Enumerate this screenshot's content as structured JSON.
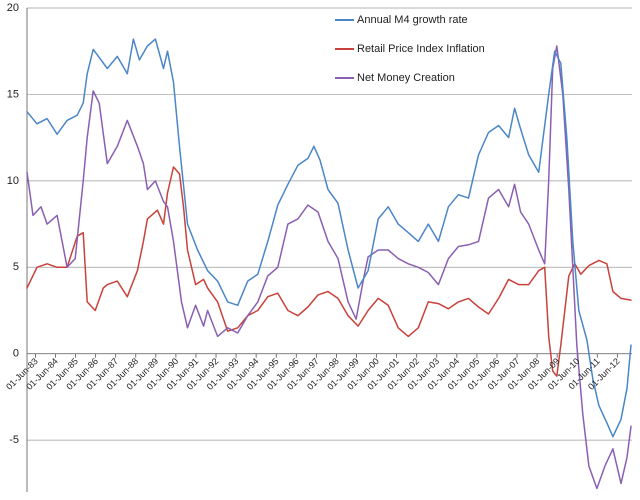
{
  "chart_data": {
    "type": "line",
    "title": "",
    "xlabel": "",
    "ylabel": "",
    "ylim": [
      -8,
      20
    ],
    "yticks": [
      -5,
      0,
      5,
      10,
      15,
      20
    ],
    "grid": true,
    "legend_position": "top-right",
    "x_tick_labels": [
      "01-Jun-83",
      "01-Jun-84",
      "01-Jun-85",
      "01-Jun-86",
      "01-Jun-87",
      "01-Jun-88",
      "01-Jun-89",
      "01-Jun-90",
      "01-Jun-91",
      "01-Jun-92",
      "01-Jun-93",
      "01-Jun-94",
      "01-Jun-95",
      "01-Jun-96",
      "01-Jun-97",
      "01-Jun-98",
      "01-Jun-99",
      "01-Jun-00",
      "01-Jun-01",
      "01-Jun-02",
      "01-Jun-03",
      "01-Jun-04",
      "01-Jun-05",
      "01-Jun-06",
      "01-Jun-07",
      "01-Jun-08",
      "01-Jun-09",
      "01-Jun-10",
      "01-Jun-11",
      "01-Jun-12"
    ],
    "x_start_year": 1983,
    "series": [
      {
        "name": "Annual M4 growth rate",
        "color": "#4a86c8",
        "points": [
          [
            1983.0,
            14.0
          ],
          [
            1983.5,
            13.3
          ],
          [
            1984.0,
            13.6
          ],
          [
            1984.5,
            12.7
          ],
          [
            1985.0,
            13.5
          ],
          [
            1985.5,
            13.8
          ],
          [
            1985.8,
            14.5
          ],
          [
            1986.0,
            16.2
          ],
          [
            1986.3,
            17.6
          ],
          [
            1986.5,
            17.3
          ],
          [
            1987.0,
            16.5
          ],
          [
            1987.5,
            17.2
          ],
          [
            1988.0,
            16.2
          ],
          [
            1988.3,
            18.2
          ],
          [
            1988.6,
            17.0
          ],
          [
            1989.0,
            17.8
          ],
          [
            1989.4,
            18.2
          ],
          [
            1989.8,
            16.5
          ],
          [
            1990.0,
            17.5
          ],
          [
            1990.3,
            15.7
          ],
          [
            1990.6,
            12.0
          ],
          [
            1991.0,
            7.5
          ],
          [
            1991.5,
            6.0
          ],
          [
            1992.0,
            4.8
          ],
          [
            1992.5,
            4.2
          ],
          [
            1993.0,
            3.0
          ],
          [
            1993.5,
            2.8
          ],
          [
            1994.0,
            4.2
          ],
          [
            1994.5,
            4.6
          ],
          [
            1995.0,
            6.5
          ],
          [
            1995.5,
            8.6
          ],
          [
            1996.0,
            9.8
          ],
          [
            1996.5,
            10.9
          ],
          [
            1997.0,
            11.3
          ],
          [
            1997.3,
            12.0
          ],
          [
            1997.6,
            11.2
          ],
          [
            1998.0,
            9.5
          ],
          [
            1998.5,
            8.7
          ],
          [
            1999.0,
            6.0
          ],
          [
            1999.5,
            3.8
          ],
          [
            2000.0,
            4.8
          ],
          [
            2000.5,
            7.8
          ],
          [
            2001.0,
            8.5
          ],
          [
            2001.5,
            7.5
          ],
          [
            2002.0,
            7.0
          ],
          [
            2002.5,
            6.5
          ],
          [
            2003.0,
            7.5
          ],
          [
            2003.5,
            6.5
          ],
          [
            2004.0,
            8.5
          ],
          [
            2004.5,
            9.2
          ],
          [
            2005.0,
            9.0
          ],
          [
            2005.5,
            11.5
          ],
          [
            2006.0,
            12.8
          ],
          [
            2006.5,
            13.2
          ],
          [
            2007.0,
            12.5
          ],
          [
            2007.3,
            14.2
          ],
          [
            2007.6,
            13.0
          ],
          [
            2008.0,
            11.5
          ],
          [
            2008.5,
            10.5
          ],
          [
            2009.0,
            15.0
          ],
          [
            2009.3,
            17.5
          ],
          [
            2009.6,
            16.8
          ],
          [
            2009.9,
            12.5
          ],
          [
            2010.2,
            6.5
          ],
          [
            2010.5,
            2.5
          ],
          [
            2010.9,
            0.8
          ],
          [
            2011.2,
            -1.5
          ],
          [
            2011.5,
            -3.0
          ],
          [
            2011.9,
            -4.0
          ],
          [
            2012.2,
            -4.8
          ],
          [
            2012.6,
            -3.8
          ],
          [
            2012.9,
            -2.0
          ],
          [
            2013.1,
            0.5
          ]
        ]
      },
      {
        "name": "Retail Price Index Inflation",
        "color": "#c8423b",
        "points": [
          [
            1983.0,
            3.8
          ],
          [
            1983.5,
            5.0
          ],
          [
            1984.0,
            5.2
          ],
          [
            1984.5,
            5.0
          ],
          [
            1985.0,
            5.0
          ],
          [
            1985.5,
            6.8
          ],
          [
            1985.8,
            7.0
          ],
          [
            1986.0,
            3.0
          ],
          [
            1986.4,
            2.5
          ],
          [
            1986.8,
            3.8
          ],
          [
            1987.0,
            4.0
          ],
          [
            1987.5,
            4.2
          ],
          [
            1988.0,
            3.3
          ],
          [
            1988.5,
            4.8
          ],
          [
            1988.8,
            6.5
          ],
          [
            1989.0,
            7.8
          ],
          [
            1989.5,
            8.3
          ],
          [
            1989.8,
            7.5
          ],
          [
            1990.0,
            9.3
          ],
          [
            1990.3,
            10.8
          ],
          [
            1990.6,
            10.4
          ],
          [
            1990.8,
            8.5
          ],
          [
            1991.0,
            6.0
          ],
          [
            1991.4,
            4.0
          ],
          [
            1991.8,
            4.3
          ],
          [
            1992.0,
            3.8
          ],
          [
            1992.5,
            3.0
          ],
          [
            1993.0,
            1.3
          ],
          [
            1993.5,
            1.5
          ],
          [
            1994.0,
            2.2
          ],
          [
            1994.5,
            2.5
          ],
          [
            1995.0,
            3.3
          ],
          [
            1995.5,
            3.5
          ],
          [
            1996.0,
            2.5
          ],
          [
            1996.5,
            2.2
          ],
          [
            1997.0,
            2.7
          ],
          [
            1997.5,
            3.4
          ],
          [
            1998.0,
            3.6
          ],
          [
            1998.5,
            3.2
          ],
          [
            1999.0,
            2.2
          ],
          [
            1999.5,
            1.6
          ],
          [
            2000.0,
            2.5
          ],
          [
            2000.5,
            3.2
          ],
          [
            2001.0,
            2.8
          ],
          [
            2001.5,
            1.5
          ],
          [
            2002.0,
            1.0
          ],
          [
            2002.5,
            1.5
          ],
          [
            2003.0,
            3.0
          ],
          [
            2003.5,
            2.9
          ],
          [
            2004.0,
            2.6
          ],
          [
            2004.5,
            3.0
          ],
          [
            2005.0,
            3.2
          ],
          [
            2005.5,
            2.7
          ],
          [
            2006.0,
            2.3
          ],
          [
            2006.5,
            3.2
          ],
          [
            2007.0,
            4.3
          ],
          [
            2007.5,
            4.0
          ],
          [
            2008.0,
            4.0
          ],
          [
            2008.5,
            4.8
          ],
          [
            2008.8,
            5.0
          ],
          [
            2009.0,
            1.0
          ],
          [
            2009.2,
            -1.0
          ],
          [
            2009.4,
            -1.3
          ],
          [
            2009.6,
            0.5
          ],
          [
            2010.0,
            4.5
          ],
          [
            2010.3,
            5.2
          ],
          [
            2010.6,
            4.6
          ],
          [
            2011.0,
            5.1
          ],
          [
            2011.5,
            5.4
          ],
          [
            2011.9,
            5.2
          ],
          [
            2012.2,
            3.6
          ],
          [
            2012.6,
            3.2
          ],
          [
            2013.1,
            3.1
          ]
        ]
      },
      {
        "name": "Net Money Creation",
        "color": "#8a5fb2",
        "points": [
          [
            1983.0,
            10.5
          ],
          [
            1983.3,
            8.0
          ],
          [
            1983.7,
            8.5
          ],
          [
            1984.0,
            7.5
          ],
          [
            1984.5,
            8.0
          ],
          [
            1985.0,
            5.0
          ],
          [
            1985.4,
            5.5
          ],
          [
            1985.8,
            10.0
          ],
          [
            1986.0,
            12.5
          ],
          [
            1986.3,
            15.2
          ],
          [
            1986.6,
            14.5
          ],
          [
            1987.0,
            11.0
          ],
          [
            1987.5,
            12.0
          ],
          [
            1988.0,
            13.5
          ],
          [
            1988.5,
            12.0
          ],
          [
            1988.8,
            11.0
          ],
          [
            1989.0,
            9.5
          ],
          [
            1989.4,
            10.0
          ],
          [
            1989.8,
            8.8
          ],
          [
            1990.0,
            8.5
          ],
          [
            1990.3,
            6.5
          ],
          [
            1990.7,
            3.0
          ],
          [
            1991.0,
            1.5
          ],
          [
            1991.4,
            2.8
          ],
          [
            1991.8,
            1.6
          ],
          [
            1992.0,
            2.5
          ],
          [
            1992.5,
            1.0
          ],
          [
            1993.0,
            1.5
          ],
          [
            1993.5,
            1.2
          ],
          [
            1994.0,
            2.2
          ],
          [
            1994.5,
            3.0
          ],
          [
            1995.0,
            4.5
          ],
          [
            1995.5,
            5.0
          ],
          [
            1996.0,
            7.5
          ],
          [
            1996.5,
            7.8
          ],
          [
            1997.0,
            8.6
          ],
          [
            1997.5,
            8.2
          ],
          [
            1998.0,
            6.5
          ],
          [
            1998.5,
            5.5
          ],
          [
            1999.0,
            3.0
          ],
          [
            1999.4,
            2.0
          ],
          [
            1999.8,
            4.5
          ],
          [
            2000.0,
            5.6
          ],
          [
            2000.5,
            6.0
          ],
          [
            2001.0,
            6.0
          ],
          [
            2001.5,
            5.5
          ],
          [
            2002.0,
            5.2
          ],
          [
            2002.5,
            5.0
          ],
          [
            2003.0,
            4.7
          ],
          [
            2003.5,
            4.0
          ],
          [
            2004.0,
            5.5
          ],
          [
            2004.5,
            6.2
          ],
          [
            2005.0,
            6.3
          ],
          [
            2005.5,
            6.5
          ],
          [
            2006.0,
            9.0
          ],
          [
            2006.5,
            9.5
          ],
          [
            2007.0,
            8.5
          ],
          [
            2007.3,
            9.8
          ],
          [
            2007.6,
            8.2
          ],
          [
            2008.0,
            7.5
          ],
          [
            2008.5,
            6.0
          ],
          [
            2008.8,
            5.2
          ],
          [
            2009.0,
            10.0
          ],
          [
            2009.2,
            16.5
          ],
          [
            2009.4,
            17.8
          ],
          [
            2009.7,
            15.0
          ],
          [
            2010.0,
            9.5
          ],
          [
            2010.4,
            0.5
          ],
          [
            2010.7,
            -3.5
          ],
          [
            2011.0,
            -6.5
          ],
          [
            2011.4,
            -7.8
          ],
          [
            2011.8,
            -6.5
          ],
          [
            2012.2,
            -5.5
          ],
          [
            2012.6,
            -7.5
          ],
          [
            2012.9,
            -6.0
          ],
          [
            2013.1,
            -4.2
          ]
        ]
      }
    ]
  }
}
